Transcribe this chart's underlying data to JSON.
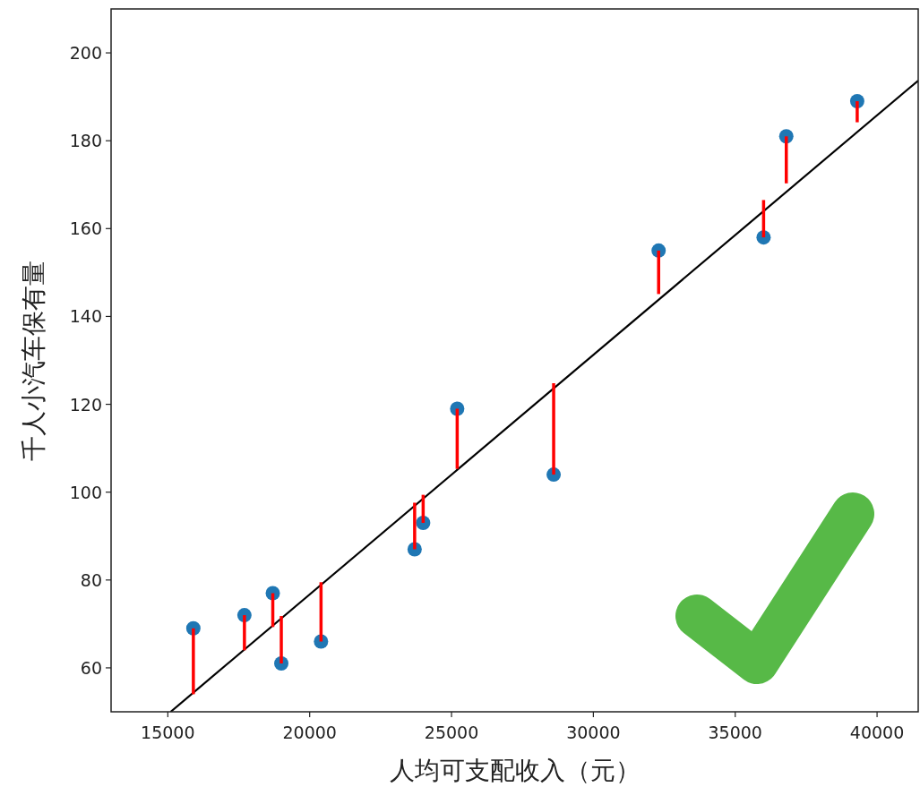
{
  "chart_data": {
    "type": "scatter",
    "xlabel": "人均可支配收入（元）",
    "ylabel": "千人小汽车保有量",
    "xlim": [
      13000,
      41450
    ],
    "ylim": [
      50,
      210
    ],
    "xticks": [
      15000,
      20000,
      25000,
      30000,
      35000,
      40000
    ],
    "yticks": [
      60,
      80,
      100,
      120,
      140,
      160,
      180,
      200
    ],
    "grid": false,
    "marker": "circle",
    "series": [
      {
        "type": "scatter",
        "color": "#1f77b4",
        "x": [
          15900,
          17700,
          18700,
          19000,
          20400,
          23700,
          24000,
          25200,
          28600,
          32300,
          36000,
          36800,
          39300
        ],
        "values": [
          69,
          72,
          77,
          61,
          66,
          87,
          93,
          119,
          104,
          155,
          158,
          181,
          189
        ],
        "errors": [
          [
            54,
            69
          ],
          [
            64,
            72
          ],
          [
            69.3,
            77
          ],
          [
            61,
            71.8
          ],
          [
            66,
            79.5
          ],
          [
            87,
            97.6
          ],
          [
            93,
            99.4
          ],
          [
            105.3,
            119
          ],
          [
            104,
            124.8
          ],
          [
            145.1,
            155
          ],
          [
            158,
            166.5
          ],
          [
            170.3,
            181
          ],
          [
            184.2,
            189
          ]
        ]
      },
      {
        "type": "line",
        "color": "#000000",
        "x": [
          15100,
          41450
        ],
        "values": [
          50,
          193.7
        ],
        "line_style": "solid",
        "marker": "none"
      }
    ]
  }
}
